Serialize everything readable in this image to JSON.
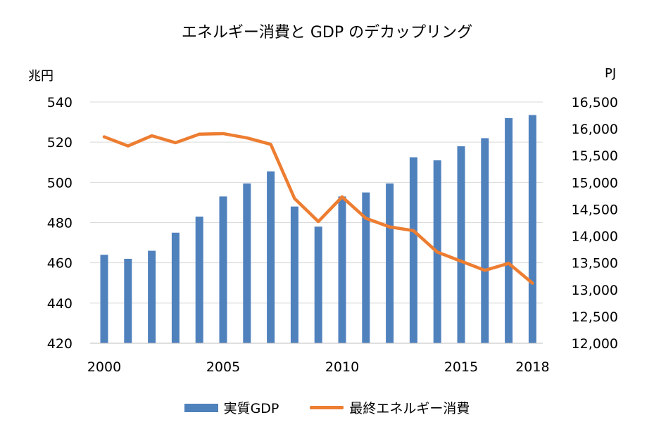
{
  "chart_data": {
    "type": "bar+line",
    "title": "エネルギー消費と GDP のデカップリング",
    "x": [
      2000,
      2001,
      2002,
      2003,
      2004,
      2005,
      2006,
      2007,
      2008,
      2009,
      2010,
      2011,
      2012,
      2013,
      2014,
      2015,
      2016,
      2017,
      2018
    ],
    "x_tick_labels": [
      "2000",
      "2005",
      "2010",
      "2015",
      "2018"
    ],
    "y_left": {
      "unit": "兆円",
      "ylim": [
        420,
        540
      ],
      "ticks": [
        "540",
        "520",
        "500",
        "480",
        "460",
        "440",
        "420"
      ]
    },
    "y_right": {
      "unit": "PJ",
      "ylim": [
        12000,
        16500
      ],
      "ticks": [
        "16,500",
        "16,000",
        "15,500",
        "15,000",
        "14,500",
        "14,000",
        "13,500",
        "13,000",
        "12,500",
        "12,000"
      ]
    },
    "series": [
      {
        "name": "実質GDP",
        "type": "bar",
        "axis": "left",
        "color": "#4f81bd",
        "values": [
          464,
          462,
          466,
          475,
          483,
          493,
          499.5,
          505.5,
          488,
          478,
          493,
          495,
          499.5,
          512.5,
          511,
          518,
          522,
          532,
          533.5
        ]
      },
      {
        "name": "最終エネルギー消費",
        "type": "line",
        "axis": "right",
        "color": "#ed7d31",
        "values": [
          15850,
          15680,
          15870,
          15740,
          15900,
          15910,
          15830,
          15710,
          14700,
          14270,
          14730,
          14330,
          14170,
          14100,
          13700,
          13530,
          13360,
          13490,
          13120
        ]
      }
    ],
    "grid": "horizontal",
    "legend_position": "bottom"
  }
}
